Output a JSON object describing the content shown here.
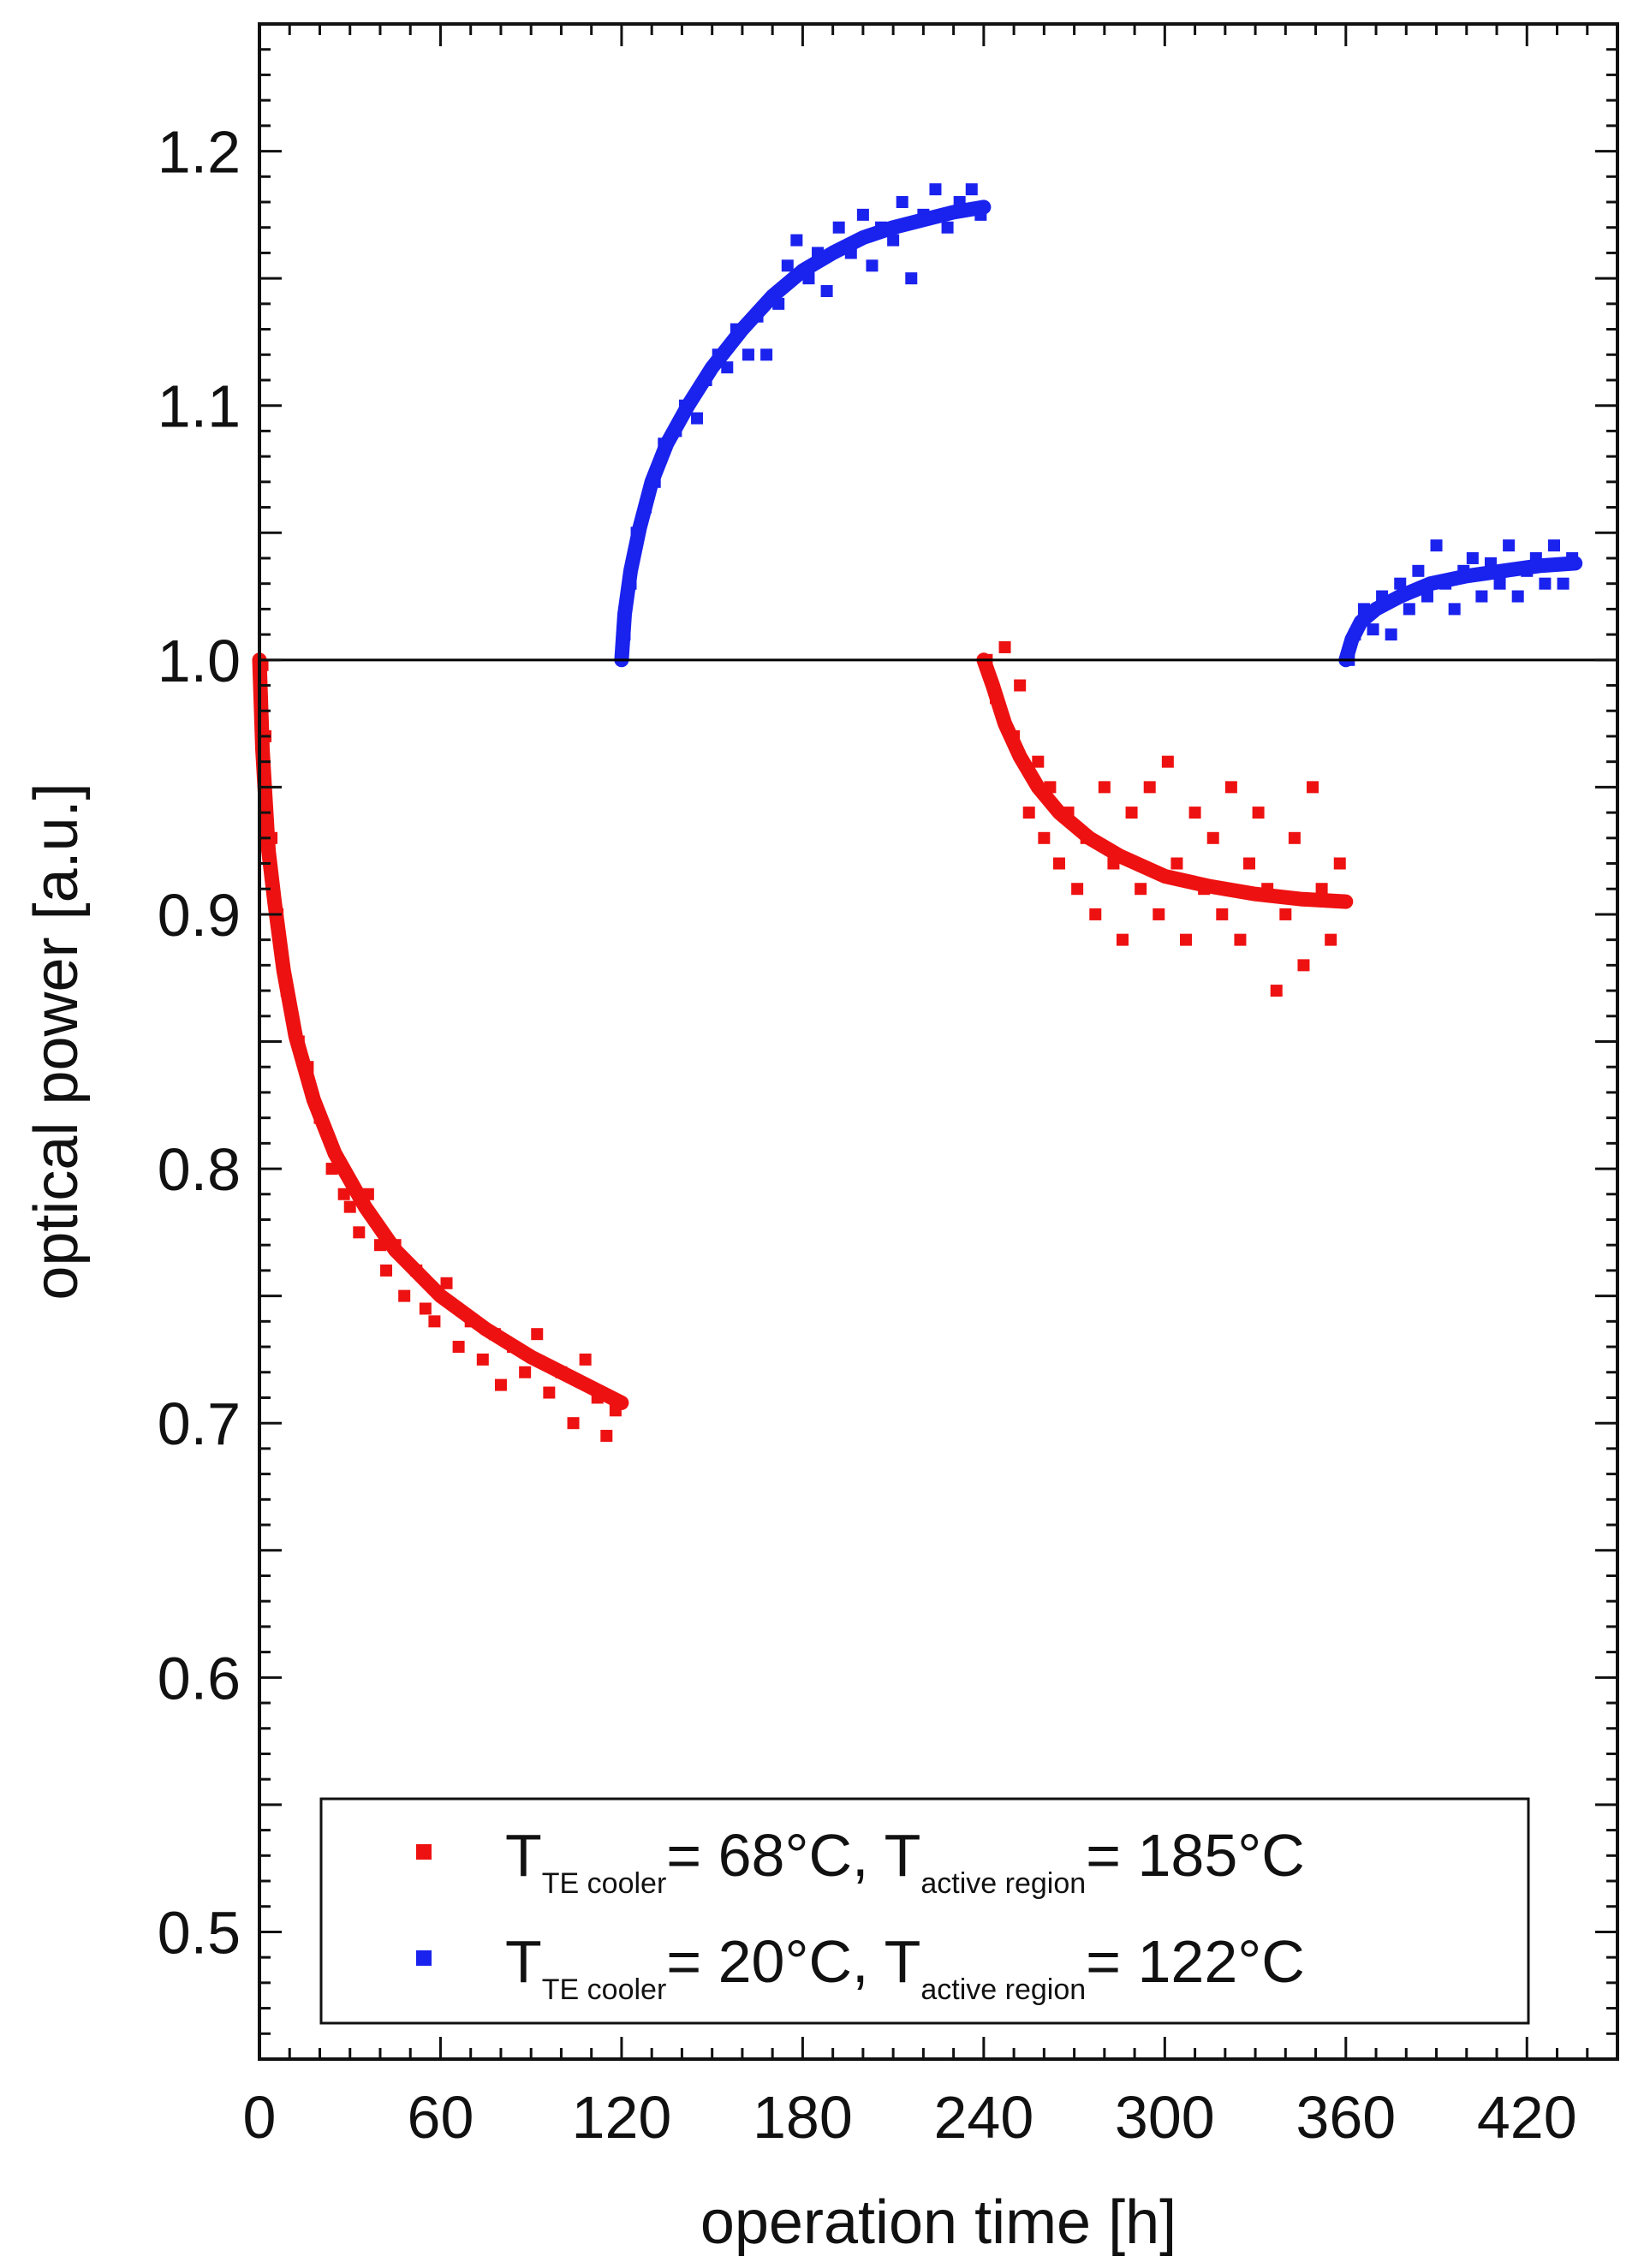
{
  "chart_data": {
    "type": "scatter",
    "xlabel": "operation time [h]",
    "ylabel": "optical power [a.u.]",
    "xlim": [
      0,
      450
    ],
    "ylim": [
      0.45,
      1.25
    ],
    "x_ticks": [
      0,
      60,
      120,
      180,
      240,
      300,
      360,
      420
    ],
    "x_tick_labels": [
      "0",
      "60",
      "120",
      "180",
      "240",
      "300",
      "360",
      "420"
    ],
    "y_ticks": [
      0.5,
      0.6,
      0.7,
      0.8,
      0.9,
      1.0,
      1.1,
      1.2
    ],
    "y_tick_labels": [
      "0.5",
      "0.6",
      "0.7",
      "0.8",
      "0.9",
      "1.0",
      "1.1",
      "1.2"
    ],
    "grid": false,
    "reference_line": {
      "y": 1.0,
      "color": "#000000"
    },
    "legend": {
      "placement": "bottom-right",
      "entries": [
        {
          "color": "#ee1111",
          "parts": [
            "T",
            "TE cooler",
            "= 68°C, T",
            "active region",
            "= 185°C"
          ]
        },
        {
          "color": "#1a22ee",
          "parts": [
            "T",
            "TE cooler",
            "= 20°C, T",
            "active region",
            "= 122°C"
          ]
        }
      ]
    },
    "series": [
      {
        "color": "#ee1111",
        "segment": "0-120 h",
        "fit": [
          [
            0,
            1.0
          ],
          [
            1,
            0.965
          ],
          [
            2,
            0.945
          ],
          [
            3,
            0.925
          ],
          [
            5,
            0.905
          ],
          [
            8,
            0.878
          ],
          [
            12,
            0.852
          ],
          [
            18,
            0.827
          ],
          [
            25,
            0.806
          ],
          [
            35,
            0.785
          ],
          [
            45,
            0.768
          ],
          [
            60,
            0.75
          ],
          [
            75,
            0.737
          ],
          [
            90,
            0.726
          ],
          [
            105,
            0.717
          ],
          [
            120,
            0.708
          ]
        ],
        "points": [
          [
            1,
            0.998
          ],
          [
            2,
            0.97
          ],
          [
            4,
            0.93
          ],
          [
            6,
            0.9
          ],
          [
            9,
            0.87
          ],
          [
            13,
            0.85
          ],
          [
            16,
            0.84
          ],
          [
            20,
            0.82
          ],
          [
            24,
            0.8
          ],
          [
            28,
            0.79
          ],
          [
            30,
            0.785
          ],
          [
            33,
            0.775
          ],
          [
            36,
            0.79
          ],
          [
            40,
            0.77
          ],
          [
            42,
            0.76
          ],
          [
            45,
            0.77
          ],
          [
            48,
            0.75
          ],
          [
            52,
            0.76
          ],
          [
            55,
            0.745
          ],
          [
            58,
            0.74
          ],
          [
            62,
            0.755
          ],
          [
            66,
            0.73
          ],
          [
            70,
            0.74
          ],
          [
            74,
            0.725
          ],
          [
            78,
            0.735
          ],
          [
            80,
            0.715
          ],
          [
            84,
            0.73
          ],
          [
            88,
            0.72
          ],
          [
            92,
            0.735
          ],
          [
            96,
            0.712
          ],
          [
            100,
            0.72
          ],
          [
            104,
            0.7
          ],
          [
            108,
            0.725
          ],
          [
            112,
            0.71
          ],
          [
            115,
            0.695
          ],
          [
            118,
            0.705
          ]
        ]
      },
      {
        "color": "#1a22ee",
        "segment": "120-240 h",
        "fit": [
          [
            120,
            1.0
          ],
          [
            121,
            1.018
          ],
          [
            123,
            1.035
          ],
          [
            126,
            1.052
          ],
          [
            130,
            1.07
          ],
          [
            135,
            1.085
          ],
          [
            142,
            1.1
          ],
          [
            150,
            1.115
          ],
          [
            160,
            1.13
          ],
          [
            170,
            1.143
          ],
          [
            180,
            1.153
          ],
          [
            190,
            1.16
          ],
          [
            200,
            1.166
          ],
          [
            210,
            1.17
          ],
          [
            220,
            1.173
          ],
          [
            230,
            1.176
          ],
          [
            240,
            1.178
          ]
        ],
        "points": [
          [
            121,
            1.01
          ],
          [
            123,
            1.03
          ],
          [
            125,
            1.05
          ],
          [
            128,
            1.06
          ],
          [
            131,
            1.07
          ],
          [
            134,
            1.085
          ],
          [
            138,
            1.09
          ],
          [
            141,
            1.1
          ],
          [
            145,
            1.095
          ],
          [
            148,
            1.11
          ],
          [
            152,
            1.12
          ],
          [
            155,
            1.115
          ],
          [
            158,
            1.13
          ],
          [
            162,
            1.12
          ],
          [
            165,
            1.135
          ],
          [
            168,
            1.12
          ],
          [
            172,
            1.14
          ],
          [
            175,
            1.155
          ],
          [
            178,
            1.165
          ],
          [
            182,
            1.15
          ],
          [
            185,
            1.16
          ],
          [
            188,
            1.145
          ],
          [
            192,
            1.17
          ],
          [
            196,
            1.16
          ],
          [
            200,
            1.175
          ],
          [
            203,
            1.155
          ],
          [
            206,
            1.17
          ],
          [
            210,
            1.165
          ],
          [
            213,
            1.18
          ],
          [
            216,
            1.15
          ],
          [
            220,
            1.175
          ],
          [
            224,
            1.185
          ],
          [
            228,
            1.17
          ],
          [
            232,
            1.18
          ],
          [
            236,
            1.185
          ],
          [
            239,
            1.175
          ]
        ]
      },
      {
        "color": "#ee1111",
        "segment": "240-360 h",
        "fit": [
          [
            240,
            1.0
          ],
          [
            243,
            0.99
          ],
          [
            247,
            0.975
          ],
          [
            252,
            0.962
          ],
          [
            258,
            0.95
          ],
          [
            265,
            0.94
          ],
          [
            275,
            0.93
          ],
          [
            285,
            0.923
          ],
          [
            300,
            0.915
          ],
          [
            315,
            0.911
          ],
          [
            330,
            0.908
          ],
          [
            345,
            0.906
          ],
          [
            360,
            0.905
          ]
        ],
        "points": [
          [
            241,
            1.0
          ],
          [
            244,
            0.985
          ],
          [
            247,
            1.005
          ],
          [
            250,
            0.97
          ],
          [
            252,
            0.99
          ],
          [
            255,
            0.94
          ],
          [
            258,
            0.96
          ],
          [
            260,
            0.93
          ],
          [
            262,
            0.95
          ],
          [
            265,
            0.92
          ],
          [
            268,
            0.94
          ],
          [
            271,
            0.91
          ],
          [
            274,
            0.93
          ],
          [
            277,
            0.9
          ],
          [
            280,
            0.95
          ],
          [
            283,
            0.92
          ],
          [
            286,
            0.89
          ],
          [
            289,
            0.94
          ],
          [
            292,
            0.91
          ],
          [
            295,
            0.95
          ],
          [
            298,
            0.9
          ],
          [
            301,
            0.96
          ],
          [
            304,
            0.92
          ],
          [
            307,
            0.89
          ],
          [
            310,
            0.94
          ],
          [
            313,
            0.91
          ],
          [
            316,
            0.93
          ],
          [
            319,
            0.9
          ],
          [
            322,
            0.95
          ],
          [
            325,
            0.89
          ],
          [
            328,
            0.92
          ],
          [
            331,
            0.94
          ],
          [
            334,
            0.91
          ],
          [
            337,
            0.87
          ],
          [
            340,
            0.9
          ],
          [
            343,
            0.93
          ],
          [
            346,
            0.88
          ],
          [
            349,
            0.95
          ],
          [
            352,
            0.91
          ],
          [
            355,
            0.89
          ],
          [
            358,
            0.92
          ]
        ]
      },
      {
        "color": "#1a22ee",
        "segment": "360-436 h",
        "fit": [
          [
            360,
            1.0
          ],
          [
            362,
            1.008
          ],
          [
            365,
            1.015
          ],
          [
            370,
            1.02
          ],
          [
            378,
            1.025
          ],
          [
            388,
            1.03
          ],
          [
            400,
            1.033
          ],
          [
            412,
            1.035
          ],
          [
            424,
            1.037
          ],
          [
            436,
            1.038
          ]
        ],
        "points": [
          [
            361,
            1.0
          ],
          [
            363,
            1.01
          ],
          [
            366,
            1.02
          ],
          [
            369,
            1.012
          ],
          [
            372,
            1.025
          ],
          [
            375,
            1.01
          ],
          [
            378,
            1.03
          ],
          [
            381,
            1.02
          ],
          [
            384,
            1.035
          ],
          [
            387,
            1.025
          ],
          [
            390,
            1.045
          ],
          [
            393,
            1.03
          ],
          [
            396,
            1.02
          ],
          [
            399,
            1.035
          ],
          [
            402,
            1.04
          ],
          [
            405,
            1.025
          ],
          [
            408,
            1.038
          ],
          [
            411,
            1.03
          ],
          [
            414,
            1.045
          ],
          [
            417,
            1.025
          ],
          [
            420,
            1.035
          ],
          [
            423,
            1.04
          ],
          [
            426,
            1.03
          ],
          [
            429,
            1.045
          ],
          [
            432,
            1.03
          ],
          [
            435,
            1.04
          ]
        ]
      }
    ]
  }
}
